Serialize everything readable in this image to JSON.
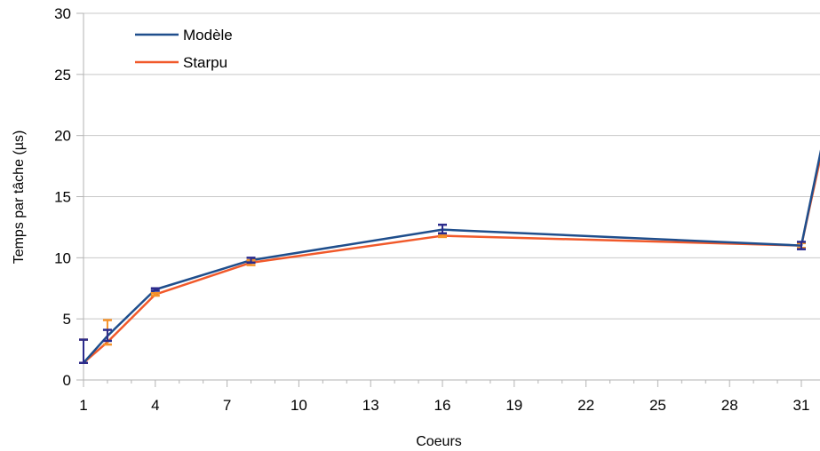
{
  "chart_data": {
    "type": "line",
    "xlabel": "Coeurs",
    "ylabel": "Temps par tâche (µs)",
    "xlim": [
      1,
      32
    ],
    "ylim": [
      0,
      30
    ],
    "x_ticks": [
      1,
      4,
      7,
      10,
      13,
      16,
      19,
      22,
      25,
      28,
      31
    ],
    "y_ticks": [
      0,
      5,
      10,
      15,
      20,
      25,
      30
    ],
    "grid": "horizontal",
    "legend_position": "top-left",
    "x": [
      1,
      2,
      4,
      8,
      16,
      31,
      32
    ],
    "series": [
      {
        "name": "Modèle",
        "color": "#1f4e8c",
        "values": [
          1.4,
          3.6,
          7.4,
          9.8,
          12.3,
          11.0,
          20.5
        ],
        "error_low": [
          1.4,
          3.2,
          7.3,
          9.6,
          12.0,
          10.7,
          null
        ],
        "error_high": [
          3.3,
          4.1,
          7.5,
          10.0,
          12.7,
          11.3,
          null
        ]
      },
      {
        "name": "Starpu",
        "color": "#f1592a",
        "values": [
          1.4,
          3.1,
          7.0,
          9.6,
          11.8,
          11.0,
          20.0
        ],
        "error_low": [
          1.4,
          2.9,
          6.9,
          9.4,
          11.7,
          10.8,
          null
        ],
        "error_high": [
          3.3,
          4.9,
          7.1,
          9.8,
          11.9,
          11.2,
          null
        ]
      }
    ]
  }
}
